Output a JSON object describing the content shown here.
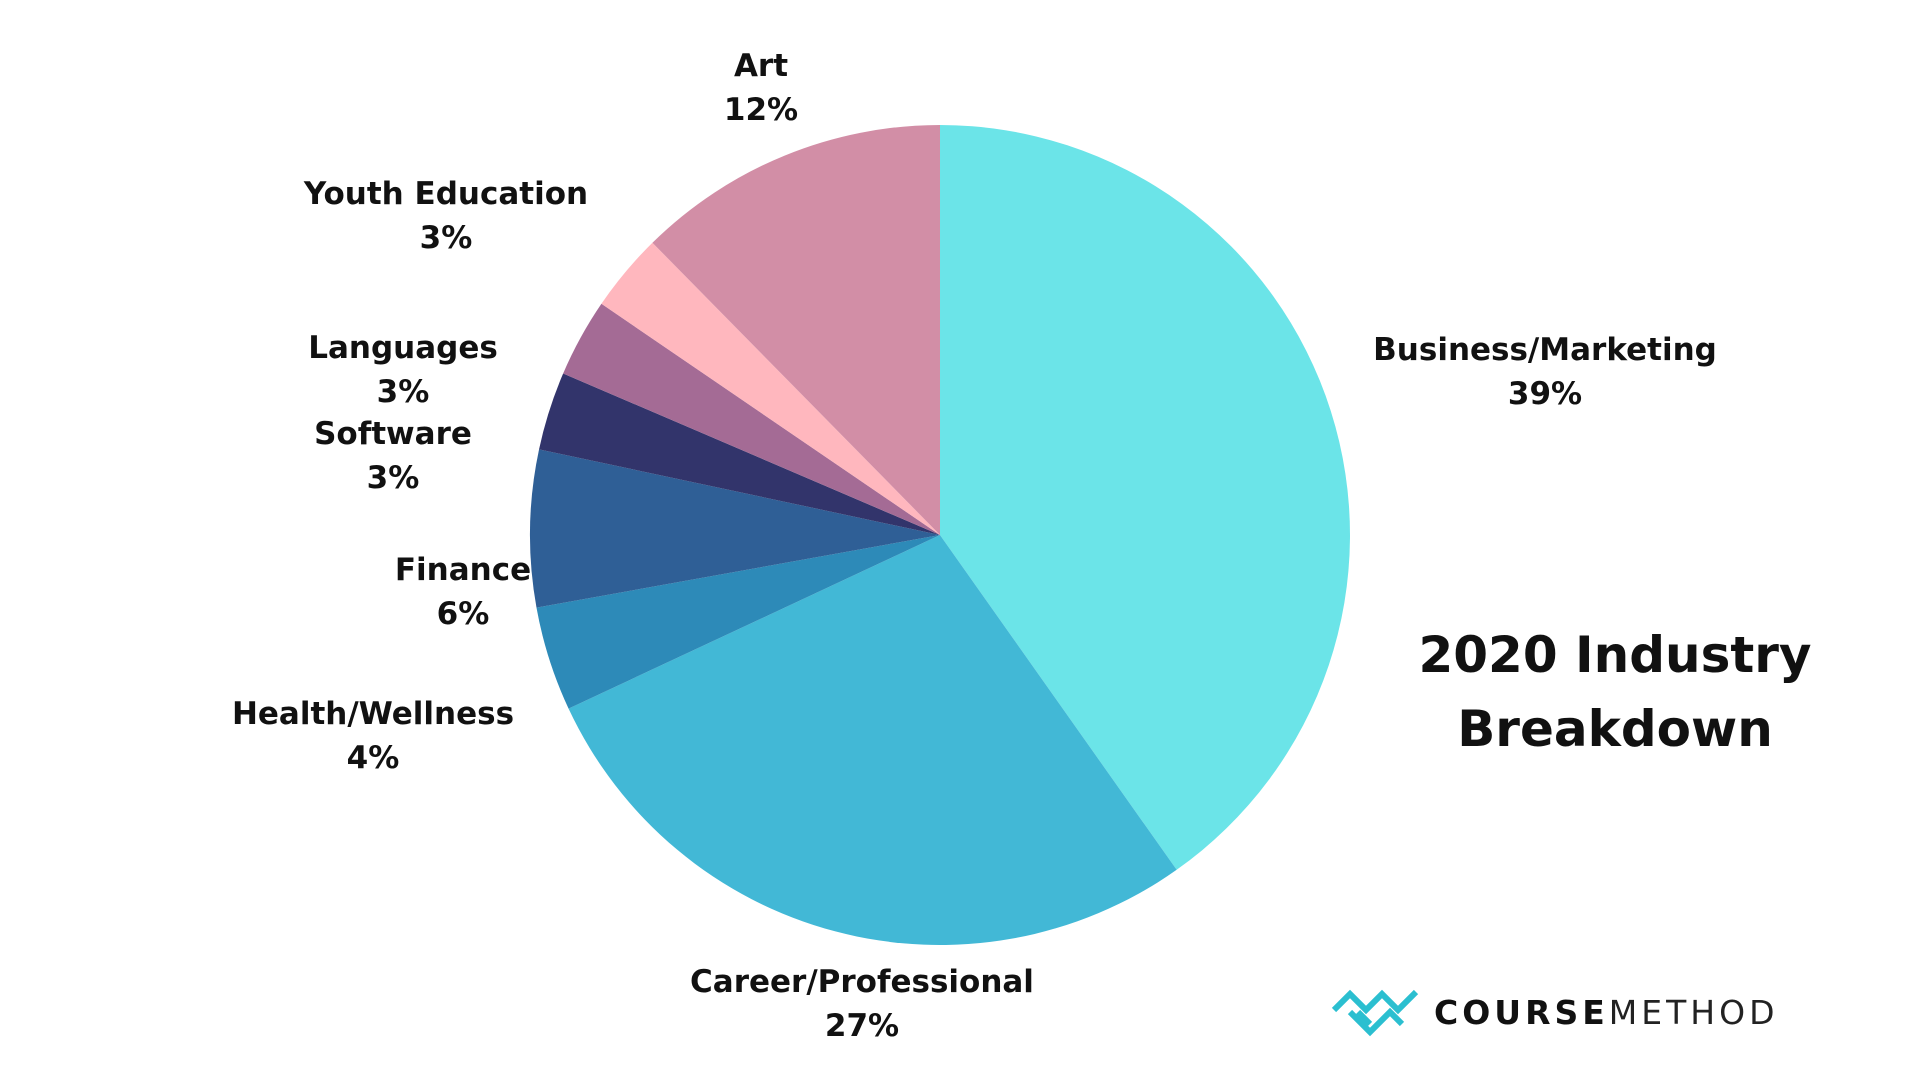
{
  "chart_data": {
    "type": "pie",
    "title": "2020 Industry Breakdown",
    "title_lines": [
      "2020 Industry",
      "Breakdown"
    ],
    "slices": [
      {
        "label": "Business/Marketing",
        "percent_label": "39%",
        "value": 39,
        "color": "#6be4e8"
      },
      {
        "label": "Career/Professional",
        "percent_label": "27%",
        "value": 27,
        "color": "#42b8d6"
      },
      {
        "label": "Health/Wellness",
        "percent_label": "4%",
        "value": 4,
        "color": "#2d8ab8"
      },
      {
        "label": "Finance",
        "percent_label": "6%",
        "value": 6,
        "color": "#2f5f96"
      },
      {
        "label": "Software",
        "percent_label": "3%",
        "value": 3,
        "color": "#32346b"
      },
      {
        "label": "Languages",
        "percent_label": "3%",
        "value": 3,
        "color": "#a46b95"
      },
      {
        "label": "Youth Education",
        "percent_label": "3%",
        "value": 3,
        "color": "#d691aa"
      },
      {
        "label": "Art",
        "percent_label": "12%",
        "value": 12,
        "color": "#d28ea6"
      }
    ],
    "extra_slice_color": "#ffb7be",
    "legend": "none"
  },
  "logo": {
    "bold": "COURSE",
    "regular": "METHOD",
    "color": "#2bbfd0"
  }
}
